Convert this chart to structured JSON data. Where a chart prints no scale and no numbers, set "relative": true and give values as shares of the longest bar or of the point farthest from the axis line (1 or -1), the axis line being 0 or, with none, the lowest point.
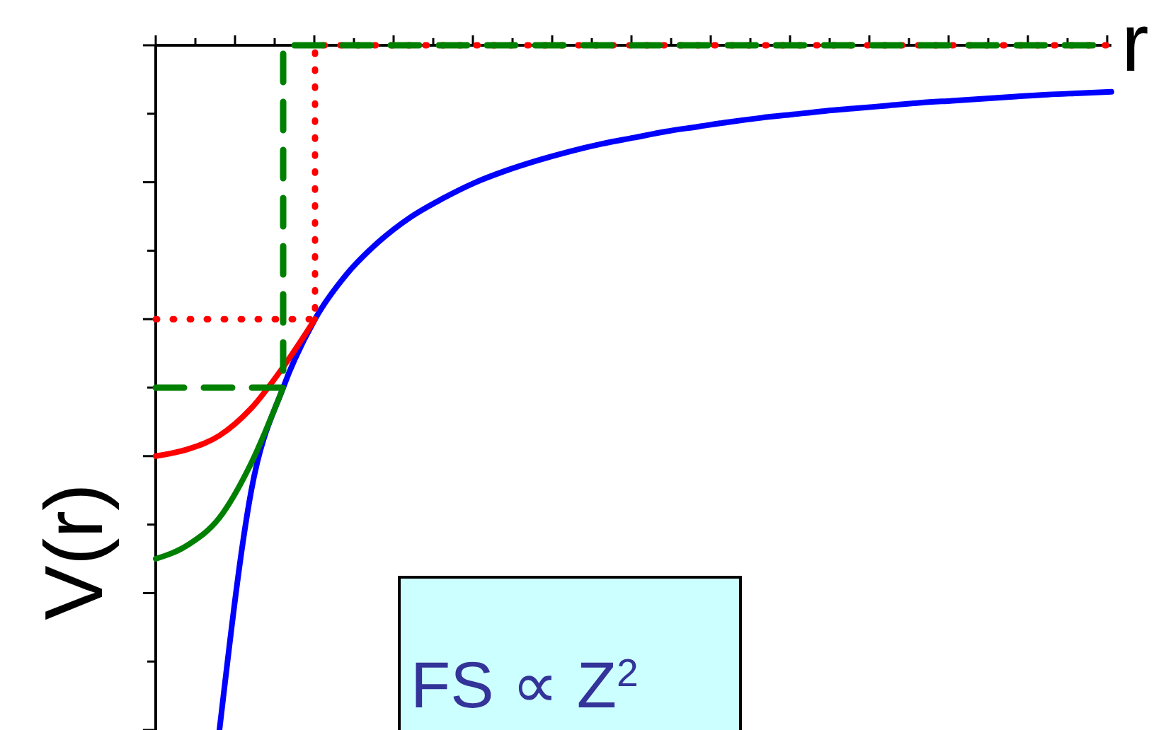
{
  "chart_data": {
    "type": "line",
    "relative": true,
    "xlabel": "r",
    "ylabel": "V(r)",
    "grid": false,
    "categories": [
      null,
      null,
      null,
      null,
      null,
      null,
      null,
      null,
      null,
      null,
      null,
      null,
      null,
      null,
      null,
      null,
      null,
      null,
      null,
      null,
      null,
      null,
      null,
      null,
      null,
      null,
      null,
      null,
      null,
      null,
      null
    ],
    "series": [
      {
        "line_style": "solid",
        "color": "#0000ff",
        "values": [
          null,
          null,
          -1,
          -0.65,
          -0.5,
          -0.4,
          -0.334,
          -0.287,
          -0.251,
          -0.224,
          -0.201,
          -0.183,
          -0.168,
          -0.155,
          -0.144,
          -0.135,
          -0.126,
          -0.119,
          -0.112,
          -0.106,
          -0.101,
          -0.096,
          -0.092,
          -0.088,
          -0.084,
          -0.081,
          -0.078,
          -0.075,
          -0.072,
          -0.07,
          -0.068
        ]
      },
      {
        "line_style": "solid",
        "color": "#ff0000",
        "values": [
          -0.6,
          -0.59,
          -0.57,
          -0.53,
          -0.47,
          -0.4,
          null,
          null,
          null,
          null,
          null,
          null,
          null,
          null,
          null,
          null,
          null,
          null,
          null,
          null,
          null,
          null,
          null,
          null,
          null,
          null,
          null,
          null,
          null,
          null,
          null
        ]
      },
      {
        "line_style": "solid",
        "color": "#008000",
        "values": [
          -0.75,
          -0.73,
          -0.69,
          -0.61,
          -0.5,
          null,
          null,
          null,
          null,
          null,
          null,
          null,
          null,
          null,
          null,
          null,
          null,
          null,
          null,
          null,
          null,
          null,
          null,
          null,
          null,
          null,
          null,
          null,
          null,
          null,
          null
        ]
      },
      {
        "type": "step",
        "line_style": "dotted",
        "color": "#ff0000",
        "values": [
          -0.4,
          -0.4,
          -0.4,
          -0.4,
          -0.4,
          0,
          0,
          0,
          0,
          0,
          0,
          0,
          0,
          0,
          0,
          0,
          0,
          0,
          0,
          0,
          0,
          0,
          0,
          0,
          0,
          0,
          0,
          0,
          0,
          0,
          0
        ]
      },
      {
        "type": "step",
        "line_style": "dashed",
        "color": "#008000",
        "values": [
          -0.5,
          -0.5,
          -0.5,
          -0.5,
          0,
          0,
          0,
          0,
          0,
          0,
          0,
          0,
          0,
          0,
          0,
          0,
          0,
          0,
          0,
          0,
          0,
          0,
          0,
          0,
          0,
          0,
          0,
          0,
          0,
          0,
          0
        ]
      }
    ],
    "annotations": [
      "FS ∝ Z$^{2}$"
    ]
  }
}
